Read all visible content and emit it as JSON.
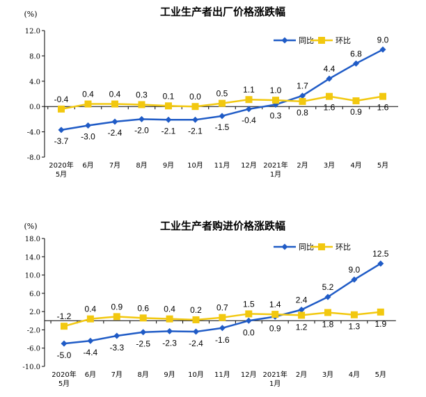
{
  "colors": {
    "yoy": "#1F5BC6",
    "mom": "#F2C80F"
  },
  "chart_data": [
    {
      "type": "line",
      "title": "工业生产者出厂价格涨跌幅",
      "unit": "(%)",
      "ylim": [
        -8.0,
        12.0
      ],
      "yticks": [
        "12.0",
        "8.0",
        "4.0",
        "0.0",
        "-4.0",
        "-8.0"
      ],
      "ytick_values": [
        12,
        8,
        4,
        0,
        -4,
        -8
      ],
      "categories": [
        [
          "2020年",
          "5月"
        ],
        [
          "6月"
        ],
        [
          "7月"
        ],
        [
          "8月"
        ],
        [
          "9月"
        ],
        [
          "10月"
        ],
        [
          "11月"
        ],
        [
          "12月"
        ],
        [
          "2021年",
          "1月"
        ],
        [
          "2月"
        ],
        [
          "3月"
        ],
        [
          "4月"
        ],
        [
          "5月"
        ]
      ],
      "legend": {
        "position": "top-right"
      },
      "series": [
        {
          "name": "同比",
          "marker": "diamond",
          "values": [
            -3.7,
            -3.0,
            -2.4,
            -2.0,
            -2.1,
            -2.1,
            -1.5,
            -0.4,
            0.3,
            1.7,
            4.4,
            6.8,
            9.0
          ],
          "labels": [
            "-3.7",
            "-3.0",
            "-2.4",
            "-2.0",
            "-2.1",
            "-2.1",
            "-1.5",
            "-0.4",
            "0.3",
            "1.7",
            "4.4",
            "6.8",
            "9.0"
          ]
        },
        {
          "name": "环比",
          "marker": "square",
          "values": [
            -0.4,
            0.4,
            0.4,
            0.3,
            0.1,
            0.0,
            0.5,
            1.1,
            1.0,
            0.8,
            1.6,
            0.9,
            1.6
          ],
          "labels": [
            "-0.4",
            "0.4",
            "0.4",
            "0.3",
            "0.1",
            "0.0",
            "0.5",
            "1.1",
            "1.0",
            "0.8",
            "1.6",
            "0.9",
            "1.6"
          ]
        }
      ]
    },
    {
      "type": "line",
      "title": "工业生产者购进价格涨跌幅",
      "unit": "(%)",
      "ylim": [
        -10.0,
        18.0
      ],
      "yticks": [
        "18.0",
        "14.0",
        "10.0",
        "6.0",
        "2.0",
        "-2.0",
        "-6.0",
        "-10.0"
      ],
      "ytick_values": [
        18,
        14,
        10,
        6,
        2,
        -2,
        -6,
        -10
      ],
      "categories": [
        [
          "2020年",
          "5月"
        ],
        [
          "6月"
        ],
        [
          "7月"
        ],
        [
          "8月"
        ],
        [
          "9月"
        ],
        [
          "10月"
        ],
        [
          "11月"
        ],
        [
          "12月"
        ],
        [
          "2021年",
          "1月"
        ],
        [
          "2月"
        ],
        [
          "3月"
        ],
        [
          "4月"
        ],
        [
          "5月"
        ]
      ],
      "legend": {
        "position": "top-right"
      },
      "series": [
        {
          "name": "同比",
          "marker": "diamond",
          "values": [
            -5.0,
            -4.4,
            -3.3,
            -2.5,
            -2.3,
            -2.4,
            -1.6,
            0.0,
            0.9,
            2.4,
            5.2,
            9.0,
            12.5
          ],
          "labels": [
            "-5.0",
            "-4.4",
            "-3.3",
            "-2.5",
            "-2.3",
            "-2.4",
            "-1.6",
            "0.0",
            "0.9",
            "2.4",
            "5.2",
            "9.0",
            "12.5"
          ]
        },
        {
          "name": "环比",
          "marker": "square",
          "values": [
            -1.2,
            0.4,
            0.9,
            0.6,
            0.4,
            0.2,
            0.7,
            1.5,
            1.4,
            1.2,
            1.8,
            1.3,
            1.9
          ],
          "labels": [
            "-1.2",
            "0.4",
            "0.9",
            "0.6",
            "0.4",
            "0.2",
            "0.7",
            "1.5",
            "1.4",
            "1.2",
            "1.8",
            "1.3",
            "1.9"
          ]
        }
      ]
    }
  ]
}
